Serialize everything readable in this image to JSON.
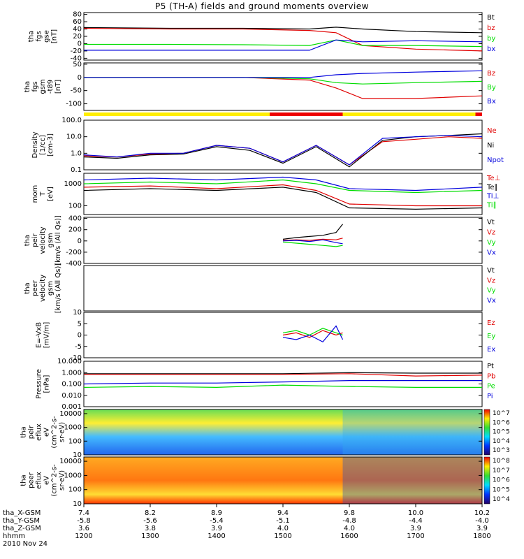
{
  "title": "P5 (TH-A) fields and ground moments overview",
  "date": "2010 Nov 24",
  "colors": {
    "black": "#000000",
    "red": "#e00000",
    "green": "#00dd00",
    "blue": "#0000dd",
    "yellow": "#ffee00",
    "orbit_red": "#ee0000"
  },
  "chart_data": [
    {
      "type": "line",
      "panel": "fgs-gse",
      "ylabel": [
        "tha",
        "fgs",
        "gse",
        "[nT]"
      ],
      "yticks": [
        80,
        60,
        40,
        20,
        0,
        -20,
        -40
      ],
      "ylim": [
        -45,
        85
      ],
      "series": [
        {
          "name": "Bt",
          "color": "#000000",
          "x": [
            1200,
            1330,
            1440,
            1540,
            1580,
            1620,
            1700,
            1800
          ],
          "y": [
            44,
            42,
            42,
            40,
            45,
            40,
            33,
            30
          ]
        },
        {
          "name": "bz",
          "color": "#e00000",
          "x": [
            1200,
            1330,
            1440,
            1540,
            1580,
            1620,
            1700,
            1800
          ],
          "y": [
            42,
            40,
            40,
            36,
            30,
            -5,
            -15,
            -20
          ]
        },
        {
          "name": "by",
          "color": "#00dd00",
          "x": [
            1200,
            1330,
            1440,
            1540,
            1580,
            1620,
            1700,
            1800
          ],
          "y": [
            -2,
            -2,
            -3,
            -5,
            10,
            -5,
            -5,
            -8
          ]
        },
        {
          "name": "bx",
          "color": "#0000dd",
          "x": [
            1200,
            1330,
            1440,
            1540,
            1580,
            1620,
            1700,
            1800
          ],
          "y": [
            -18,
            -18,
            -18,
            -18,
            10,
            5,
            8,
            5
          ]
        }
      ],
      "legend": [
        "Bt",
        "bz",
        "by",
        "bx"
      ]
    },
    {
      "type": "line",
      "panel": "fgs-gsm-t89",
      "ylabel": [
        "tha",
        "fgs",
        "gsm",
        "-t89",
        "[nT]"
      ],
      "yticks": [
        50,
        0,
        -50,
        -100
      ],
      "ylim": [
        -125,
        55
      ],
      "series": [
        {
          "name": "Bz",
          "color": "#e00000",
          "x": [
            1200,
            1330,
            1440,
            1540,
            1580,
            1620,
            1700,
            1800
          ],
          "y": [
            0,
            0,
            0,
            -10,
            -40,
            -80,
            -80,
            -70
          ]
        },
        {
          "name": "By",
          "color": "#00dd00",
          "x": [
            1200,
            1330,
            1440,
            1540,
            1580,
            1620,
            1700,
            1800
          ],
          "y": [
            0,
            0,
            0,
            -5,
            -20,
            -25,
            -20,
            -15
          ]
        },
        {
          "name": "Bx",
          "color": "#0000dd",
          "x": [
            1200,
            1330,
            1440,
            1540,
            1580,
            1620,
            1700,
            1800
          ],
          "y": [
            0,
            0,
            0,
            0,
            10,
            15,
            20,
            25
          ]
        }
      ],
      "legend": [
        "Bz",
        "By",
        "Bx"
      ]
    },
    {
      "type": "line",
      "panel": "density",
      "ylabel": [
        "Density",
        "[1/cc]",
        "[cm-3]"
      ],
      "yticks": [
        "100.0",
        "10.0",
        "1.0",
        "0.1"
      ],
      "log": true,
      "ylim": [
        0.1,
        100
      ],
      "series": [
        {
          "name": "Ne",
          "color": "#e00000",
          "x": [
            1200,
            1250,
            1300,
            1350,
            1400,
            1450,
            1500,
            1550,
            1600,
            1650,
            1700,
            1750,
            1800
          ],
          "y": [
            0.7,
            0.6,
            0.9,
            1.0,
            3.0,
            2.0,
            0.3,
            3.0,
            0.2,
            5,
            7,
            10,
            8
          ]
        },
        {
          "name": "Ni",
          "color": "#000000",
          "x": [
            1200,
            1250,
            1300,
            1350,
            1400,
            1450,
            1500,
            1550,
            1600,
            1650,
            1700,
            1750,
            1800
          ],
          "y": [
            0.6,
            0.5,
            0.8,
            0.9,
            2.5,
            1.5,
            0.25,
            2.5,
            0.15,
            6,
            10,
            12,
            15
          ]
        },
        {
          "name": "Npot",
          "color": "#0000dd",
          "x": [
            1200,
            1250,
            1300,
            1350,
            1400,
            1450,
            1500,
            1550,
            1600,
            1650,
            1700,
            1750,
            1800
          ],
          "y": [
            0.8,
            0.6,
            1.0,
            1.0,
            3.0,
            2.0,
            0.3,
            3.0,
            0.2,
            8,
            10,
            12,
            10
          ]
        }
      ],
      "legend": [
        "Ne",
        "Ni",
        "Npot"
      ]
    },
    {
      "type": "line",
      "panel": "mom-temperature",
      "ylabel": [
        "mom",
        "T",
        "[eV]"
      ],
      "yticks": [
        1000,
        100
      ],
      "log": true,
      "ylim": [
        40,
        3000
      ],
      "series": [
        {
          "name": "Te⊥",
          "color": "#e00000",
          "x": [
            1200,
            1300,
            1400,
            1500,
            1550,
            1600,
            1700,
            1800
          ],
          "y": [
            700,
            800,
            600,
            900,
            500,
            120,
            100,
            100
          ]
        },
        {
          "name": "Te∥",
          "color": "#000000",
          "x": [
            1200,
            1300,
            1400,
            1500,
            1550,
            1600,
            1700,
            1800
          ],
          "y": [
            500,
            600,
            500,
            700,
            400,
            80,
            70,
            80
          ]
        },
        {
          "name": "Ti⊥",
          "color": "#0000dd",
          "x": [
            1200,
            1300,
            1400,
            1500,
            1550,
            1600,
            1700,
            1800
          ],
          "y": [
            1500,
            1800,
            1500,
            2000,
            1500,
            600,
            500,
            700
          ]
        },
        {
          "name": "Ti∥",
          "color": "#00dd00",
          "x": [
            1200,
            1300,
            1400,
            1500,
            1550,
            1600,
            1700,
            1800
          ],
          "y": [
            1000,
            1200,
            1000,
            1500,
            1000,
            500,
            400,
            500
          ]
        }
      ],
      "legend": [
        "Te⊥",
        "Te∥",
        "Ti⊥",
        "Ti∥"
      ]
    },
    {
      "type": "line",
      "panel": "peir-velocity",
      "ylabel": [
        "tha",
        "peir",
        "velocity",
        "gsm",
        "[km/s (All Qs)]"
      ],
      "yticks": [
        400,
        200,
        0,
        -200,
        -400
      ],
      "ylim": [
        -400,
        420
      ],
      "series": [
        {
          "name": "Vt",
          "color": "#000000",
          "x": [
            1500,
            1520,
            1540,
            1560,
            1580,
            1590
          ],
          "y": [
            30,
            60,
            80,
            100,
            150,
            300
          ]
        },
        {
          "name": "Vz",
          "color": "#e00000",
          "x": [
            1500,
            1520,
            1540,
            1560,
            1580,
            1590
          ],
          "y": [
            10,
            20,
            10,
            30,
            20,
            50
          ]
        },
        {
          "name": "Vy",
          "color": "#00dd00",
          "x": [
            1500,
            1520,
            1540,
            1560,
            1580,
            1590
          ],
          "y": [
            -20,
            -40,
            -60,
            -80,
            -100,
            -80
          ]
        },
        {
          "name": "Vx",
          "color": "#0000dd",
          "x": [
            1500,
            1520,
            1540,
            1560,
            1580,
            1590
          ],
          "y": [
            0,
            10,
            -10,
            20,
            -30,
            -50
          ]
        }
      ],
      "legend": [
        "Vt",
        "Vz",
        "Vy",
        "Vx"
      ]
    },
    {
      "type": "line",
      "panel": "peer-velocity",
      "ylabel": [
        "tha",
        "peer",
        "velocity",
        "gsm",
        "[km/s (All Qs)]"
      ],
      "yticks": [],
      "ylim": [
        -400,
        400
      ],
      "series": [],
      "legend": [
        "Vt",
        "Vz",
        "Vy",
        "Vx"
      ]
    },
    {
      "type": "line",
      "panel": "efield",
      "ylabel": [
        "E=-VxB",
        "[mV/m]"
      ],
      "yticks": [
        10,
        5,
        0,
        -5,
        -10
      ],
      "ylim": [
        -10,
        10
      ],
      "series": [
        {
          "name": "Ez",
          "color": "#e00000",
          "x": [
            1500,
            1520,
            1540,
            1560,
            1580,
            1590
          ],
          "y": [
            0,
            1,
            -1,
            2,
            0,
            1
          ]
        },
        {
          "name": "Ey",
          "color": "#00dd00",
          "x": [
            1500,
            1520,
            1540,
            1560,
            1580,
            1590
          ],
          "y": [
            1,
            2,
            0,
            3,
            1,
            0
          ]
        },
        {
          "name": "Ex",
          "color": "#0000dd",
          "x": [
            1500,
            1520,
            1540,
            1560,
            1580,
            1590
          ],
          "y": [
            -1,
            -2,
            0,
            -3,
            4,
            -2
          ]
        }
      ],
      "legend": [
        "Ez",
        "Ey",
        "Ex"
      ]
    },
    {
      "type": "line",
      "panel": "pressure",
      "ylabel": [
        "Pressure",
        "[nPa]"
      ],
      "yticks": [
        "10.000",
        "1.000",
        "0.100",
        "0.010",
        "0.001"
      ],
      "log": true,
      "ylim": [
        0.001,
        10
      ],
      "series": [
        {
          "name": "Pt",
          "color": "#000000",
          "x": [
            1200,
            1300,
            1400,
            1500,
            1600,
            1700,
            1800
          ],
          "y": [
            0.8,
            0.8,
            0.8,
            0.8,
            1.0,
            0.9,
            0.9
          ]
        },
        {
          "name": "Pb",
          "color": "#e00000",
          "x": [
            1200,
            1300,
            1400,
            1500,
            1600,
            1700,
            1800
          ],
          "y": [
            0.7,
            0.7,
            0.7,
            0.7,
            0.8,
            0.5,
            0.6
          ]
        },
        {
          "name": "Pe",
          "color": "#00dd00",
          "x": [
            1200,
            1300,
            1400,
            1500,
            1600,
            1700,
            1800
          ],
          "y": [
            0.05,
            0.06,
            0.05,
            0.08,
            0.06,
            0.05,
            0.05
          ]
        },
        {
          "name": "Pi",
          "color": "#0000dd",
          "x": [
            1200,
            1300,
            1400,
            1500,
            1600,
            1700,
            1800
          ],
          "y": [
            0.1,
            0.12,
            0.12,
            0.15,
            0.2,
            0.2,
            0.2
          ]
        }
      ],
      "legend": [
        "Pt",
        "Pb",
        "Pe",
        "Pi"
      ]
    },
    {
      "type": "heatmap",
      "panel": "peir-eflux",
      "ylabel": [
        "tha",
        "peir",
        "eflux",
        "eV",
        "(cm^2-s-",
        "sr-eV)"
      ],
      "yticks": [
        "10000",
        "1000",
        "100",
        "10"
      ],
      "log": true,
      "ylim": [
        10,
        20000
      ],
      "colorbar_labels": [
        "10^7",
        "10^6",
        "10^5",
        "10^4",
        "10^3"
      ]
    },
    {
      "type": "heatmap",
      "panel": "peer-eflux",
      "ylabel": [
        "tha",
        "peer",
        "eflux",
        "eV",
        "(cm^2-s-",
        "sr-eV)"
      ],
      "yticks": [
        "10000",
        "1000",
        "100",
        "10"
      ],
      "log": true,
      "ylim": [
        10,
        20000
      ],
      "colorbar_labels": [
        "10^8",
        "10^7",
        "10^6",
        "10^5",
        "10^4"
      ]
    }
  ],
  "x_axis": {
    "xlim": [
      1200,
      1800
    ],
    "rows": [
      {
        "label": "tha_X-GSM",
        "values": [
          "7.4",
          "8.2",
          "8.9",
          "9.4",
          "9.8",
          "10.0",
          "10.2"
        ]
      },
      {
        "label": "tha_Y-GSM",
        "values": [
          "-5.8",
          "-5.6",
          "-5.4",
          "-5.1",
          "-4.8",
          "-4.4",
          "-4.0"
        ]
      },
      {
        "label": "tha_Z-GSM",
        "values": [
          "3.6",
          "3.8",
          "3.9",
          "4.0",
          "4.0",
          "3.9",
          "3.9"
        ]
      },
      {
        "label": "hhmm",
        "values": [
          "1200",
          "1300",
          "1400",
          "1500",
          "1600",
          "1700",
          "1800"
        ]
      }
    ]
  }
}
